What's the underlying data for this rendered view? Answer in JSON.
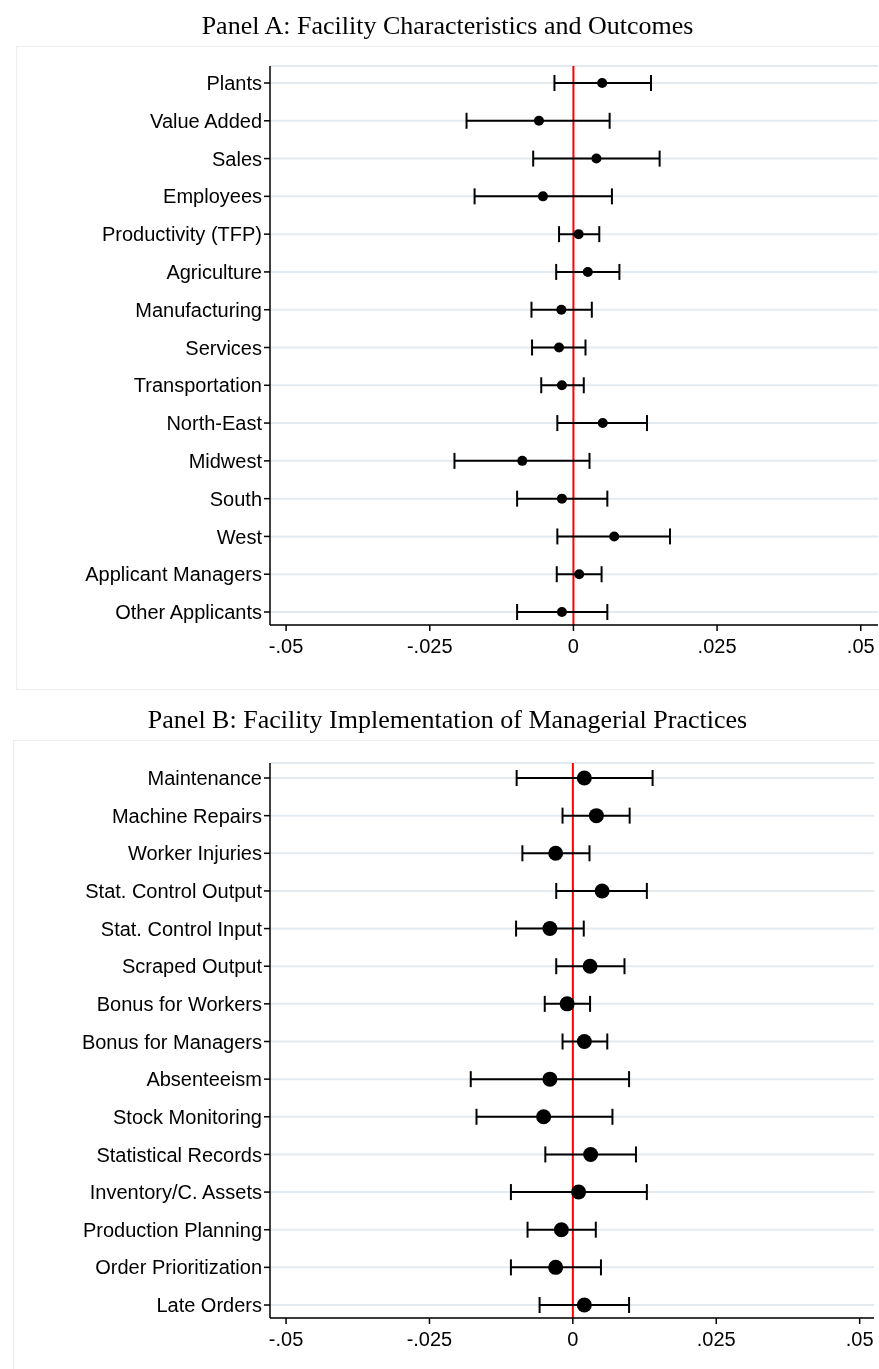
{
  "chart_data": [
    {
      "type": "scatter",
      "title": "Panel A: Facility Characteristics and Outcomes",
      "orientation": "horizontal",
      "marker": "circle",
      "color": "#000000",
      "grid": "y",
      "categories": [
        "Plants",
        "Value Added",
        "Sales",
        "Employees",
        "Productivity (TFP)",
        "Agriculture",
        "Manufacturing",
        "Services",
        "Transportation",
        "North-East",
        "Midwest",
        "South",
        "West",
        "Applicant Managers",
        "Other Applicants"
      ],
      "values": [
        0.005,
        -0.006,
        0.004,
        -0.0053,
        0.0009,
        0.0025,
        -0.0021,
        -0.0025,
        -0.002,
        0.0051,
        -0.0089,
        -0.002,
        0.0071,
        0.001,
        -0.002
      ],
      "errors": [
        [
          -0.0033,
          0.0135
        ],
        [
          -0.0186,
          0.0063
        ],
        [
          -0.007,
          0.015
        ],
        [
          -0.0172,
          0.0067
        ],
        [
          -0.0025,
          0.0045
        ],
        [
          -0.003,
          0.008
        ],
        [
          -0.0073,
          0.0032
        ],
        [
          -0.0072,
          0.0021
        ],
        [
          -0.0056,
          0.0018
        ],
        [
          -0.0028,
          0.0128
        ],
        [
          -0.0207,
          0.0028
        ],
        [
          -0.0098,
          0.0059
        ],
        [
          -0.0028,
          0.0168
        ],
        [
          -0.0029,
          0.0049
        ],
        [
          -0.0098,
          0.0059
        ]
      ],
      "xlim": [
        -0.0528,
        0.053
      ],
      "xticks": [
        {
          "value": -0.05,
          "label": "-.05"
        },
        {
          "value": -0.025,
          "label": "-.025"
        },
        0,
        {
          "value": 0.025,
          "label": ".025"
        },
        {
          "value": 0.05,
          "label": ".05"
        }
      ],
      "ref_lines": [
        {
          "axis": "x",
          "value": 0,
          "color": "#ff0000"
        }
      ]
    },
    {
      "type": "scatter",
      "title": "Panel B: Facility Implementation of Managerial Practices",
      "orientation": "horizontal",
      "marker": "circle",
      "color": "#000000",
      "grid": "y",
      "categories": [
        "Maintenance",
        "Machine Repairs",
        "Worker Injuries",
        "Stat. Control Output",
        "Stat. Control Input",
        "Scraped Output",
        "Bonus for Workers",
        "Bonus for Managers",
        "Absenteeism",
        "Stock Monitoring",
        "Statistical Records",
        "Inventory/C. Assets",
        "Production Planning",
        "Order Prioritization",
        "Late Orders"
      ],
      "values": [
        0.002,
        0.0041,
        -0.003,
        0.0051,
        -0.004,
        0.003,
        -0.001,
        0.002,
        -0.004,
        -0.0051,
        0.0031,
        0.001,
        -0.002,
        -0.003,
        0.002
      ],
      "errors": [
        [
          -0.0098,
          0.0139
        ],
        [
          -0.0018,
          0.0099
        ],
        [
          -0.0088,
          0.0029
        ],
        [
          -0.0029,
          0.0129
        ],
        [
          -0.0099,
          0.0019
        ],
        [
          -0.0029,
          0.009
        ],
        [
          -0.0049,
          0.003
        ],
        [
          -0.0018,
          0.006
        ],
        [
          -0.0178,
          0.0098
        ],
        [
          -0.0168,
          0.0069
        ],
        [
          -0.0048,
          0.011
        ],
        [
          -0.0108,
          0.0129
        ],
        [
          -0.0079,
          0.004
        ],
        [
          -0.0108,
          0.0049
        ],
        [
          -0.0058,
          0.0098
        ]
      ],
      "xlim": [
        -0.0528,
        0.0525
      ],
      "xticks": [
        {
          "value": -0.05,
          "label": "-.05"
        },
        {
          "value": -0.025,
          "label": "-.025"
        },
        0,
        {
          "value": 0.025,
          "label": ".025"
        },
        {
          "value": 0.05,
          "label": ".05"
        }
      ],
      "ref_lines": [
        {
          "axis": "x",
          "value": 0,
          "color": "#ff0000"
        }
      ]
    }
  ]
}
